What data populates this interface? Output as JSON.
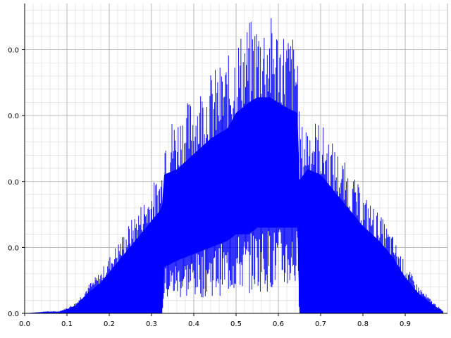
{
  "chart_data": {
    "type": "area",
    "title": "",
    "xlabel": "",
    "ylabel": "",
    "xlim": [
      0,
      1.0
    ],
    "ylim": [
      0,
      0.0047
    ],
    "grid": true,
    "x_ticks": [
      "0.0",
      "0.1",
      "0.2",
      "0.3",
      "0.4",
      "0.5",
      "0.6",
      "0.7",
      "0.8",
      "0.9"
    ],
    "y_ticks": [
      "0.0",
      "0.0",
      "0.0",
      "0.0",
      "0.0",
      "0.0"
    ],
    "series": [
      {
        "color": "#0000ff",
        "x": [
          0.0,
          0.05,
          0.08,
          0.1,
          0.12,
          0.15,
          0.18,
          0.2,
          0.22,
          0.25,
          0.28,
          0.3,
          0.32,
          0.325,
          0.33,
          0.36,
          0.4,
          0.44,
          0.48,
          0.5,
          0.53,
          0.55,
          0.58,
          0.6,
          0.62,
          0.645,
          0.65,
          0.67,
          0.7,
          0.73,
          0.76,
          0.8,
          0.84,
          0.87,
          0.9,
          0.93,
          0.96,
          0.99
        ],
        "upper": [
          0.0,
          3e-05,
          3e-05,
          8e-05,
          0.00015,
          0.0004,
          0.0006,
          0.0008,
          0.001,
          0.0013,
          0.0016,
          0.0018,
          0.002,
          0.0021,
          0.0027,
          0.0028,
          0.0031,
          0.0034,
          0.0036,
          0.0039,
          0.0041,
          0.0042,
          0.0042,
          0.0041,
          0.004,
          0.0039,
          0.0026,
          0.0028,
          0.0027,
          0.0024,
          0.0021,
          0.0017,
          0.0014,
          0.0011,
          0.0007,
          0.0004,
          0.0002,
          3e-05
        ],
        "lower": [
          0.0,
          0.0,
          0.0,
          0.0,
          0.0,
          0.0,
          0.0,
          0.0,
          0.0,
          0.0,
          0.0,
          0.0,
          0.0,
          0.0,
          0.0007,
          0.0008,
          0.0009,
          0.001,
          0.0011,
          0.0012,
          0.0012,
          0.0013,
          0.0013,
          0.0013,
          0.0013,
          0.0013,
          0.0,
          0.0,
          0.0,
          0.0,
          0.0,
          0.0,
          0.0,
          0.0,
          0.0,
          0.0,
          0.0,
          0.0
        ]
      }
    ]
  }
}
